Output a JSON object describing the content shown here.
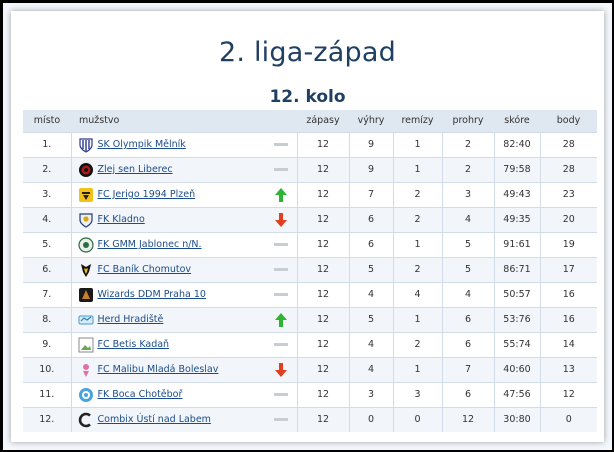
{
  "header": {
    "title": "2. liga-západ",
    "subtitle": "12. kolo"
  },
  "colors": {
    "title": "#1f3f63",
    "link": "#1b4d8a",
    "up": "#2fb332",
    "down": "#e0401f",
    "same": "#c8cdd3"
  },
  "columns": {
    "place": "místo",
    "team": "mužstvo",
    "played": "zápasy",
    "wins": "výhry",
    "draws": "remízy",
    "losses": "prohry",
    "score": "skóre",
    "points": "body"
  },
  "rows": [
    {
      "place": "1.",
      "team": "SK Olympik Mělník",
      "logo": "olympik-logo",
      "trend": "same",
      "played": "12",
      "wins": "9",
      "draws": "1",
      "losses": "2",
      "score": "82:40",
      "points": "28"
    },
    {
      "place": "2.",
      "team": "Zlej sen Liberec",
      "logo": "zlej-sen-logo",
      "trend": "same",
      "played": "12",
      "wins": "9",
      "draws": "1",
      "losses": "2",
      "score": "79:58",
      "points": "28"
    },
    {
      "place": "3.",
      "team": "FC Jerigo 1994 Plzeň",
      "logo": "jerigo-logo",
      "trend": "up",
      "played": "12",
      "wins": "7",
      "draws": "2",
      "losses": "3",
      "score": "49:43",
      "points": "23"
    },
    {
      "place": "4.",
      "team": "FK Kladno",
      "logo": "kladno-logo",
      "trend": "down",
      "played": "12",
      "wins": "6",
      "draws": "2",
      "losses": "4",
      "score": "49:35",
      "points": "20"
    },
    {
      "place": "5.",
      "team": "FK GMM Jablonec n/N.",
      "logo": "gmm-logo",
      "trend": "same",
      "played": "12",
      "wins": "6",
      "draws": "1",
      "losses": "5",
      "score": "91:61",
      "points": "19"
    },
    {
      "place": "6.",
      "team": "FC Baník Chomutov",
      "logo": "banik-logo",
      "trend": "same",
      "played": "12",
      "wins": "5",
      "draws": "2",
      "losses": "5",
      "score": "86:71",
      "points": "17"
    },
    {
      "place": "7.",
      "team": "Wizards DDM Praha 10",
      "logo": "wizards-logo",
      "trend": "same",
      "played": "12",
      "wins": "4",
      "draws": "4",
      "losses": "4",
      "score": "50:57",
      "points": "16"
    },
    {
      "place": "8.",
      "team": "Herd Hradiště",
      "logo": "herd-logo",
      "trend": "up",
      "played": "12",
      "wins": "5",
      "draws": "1",
      "losses": "6",
      "score": "53:76",
      "points": "16"
    },
    {
      "place": "9.",
      "team": "FC Betis Kadaň",
      "logo": "betis-logo",
      "trend": "same",
      "played": "12",
      "wins": "4",
      "draws": "2",
      "losses": "6",
      "score": "55:74",
      "points": "14"
    },
    {
      "place": "10.",
      "team": "FC Malibu Mladá Boleslav",
      "logo": "malibu-logo",
      "trend": "down",
      "played": "12",
      "wins": "4",
      "draws": "1",
      "losses": "7",
      "score": "40:60",
      "points": "13"
    },
    {
      "place": "11.",
      "team": "FK Boca Chotěboř",
      "logo": "boca-logo",
      "trend": "same",
      "played": "12",
      "wins": "3",
      "draws": "3",
      "losses": "6",
      "score": "47:56",
      "points": "12"
    },
    {
      "place": "12.",
      "team": "Combix Ústí nad Labem",
      "logo": "combix-logo",
      "trend": "same",
      "played": "12",
      "wins": "0",
      "draws": "0",
      "losses": "12",
      "score": "30:80",
      "points": "0"
    }
  ]
}
